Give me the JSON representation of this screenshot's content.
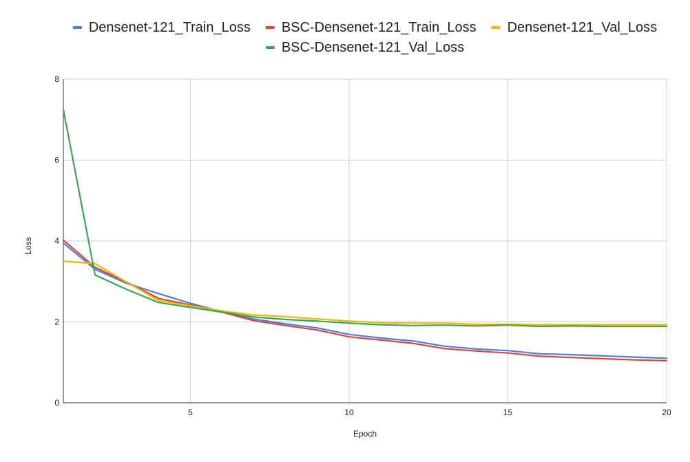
{
  "chart_data": {
    "type": "line",
    "title": "",
    "xlabel": "Epoch",
    "ylabel": "Loss",
    "xlim": [
      1,
      20
    ],
    "ylim": [
      0,
      8
    ],
    "x_ticks": [
      "5",
      "10",
      "15",
      "20"
    ],
    "y_ticks": [
      "0",
      "2",
      "4",
      "6",
      "8"
    ],
    "grid": true,
    "legend_position": "top",
    "x": [
      1,
      2,
      3,
      4,
      5,
      6,
      7,
      8,
      9,
      10,
      11,
      12,
      13,
      14,
      15,
      16,
      17,
      18,
      19,
      20
    ],
    "series": [
      {
        "name": "Densenet-121_Train_Loss",
        "color": "#4A7FE0",
        "values": [
          3.95,
          3.3,
          2.95,
          2.7,
          2.46,
          2.25,
          2.07,
          1.95,
          1.85,
          1.69,
          1.6,
          1.53,
          1.4,
          1.33,
          1.29,
          1.21,
          1.19,
          1.16,
          1.13,
          1.1
        ]
      },
      {
        "name": "BSC-Densenet-121_Train_Loss",
        "color": "#DB4437",
        "values": [
          4.02,
          3.35,
          2.98,
          2.58,
          2.42,
          2.24,
          2.03,
          1.91,
          1.8,
          1.63,
          1.55,
          1.47,
          1.34,
          1.28,
          1.23,
          1.15,
          1.12,
          1.09,
          1.06,
          1.04
        ]
      },
      {
        "name": "Densenet-121_Val_Loss",
        "color": "#F4B400",
        "values": [
          3.5,
          3.44,
          2.98,
          2.53,
          2.4,
          2.27,
          2.17,
          2.13,
          2.07,
          2.02,
          1.98,
          1.97,
          1.97,
          1.94,
          1.94,
          1.93,
          1.93,
          1.93,
          1.93,
          1.93
        ]
      },
      {
        "name": "BSC-Densenet-121_Val_Loss",
        "color": "#34A853",
        "values": [
          7.25,
          3.16,
          2.8,
          2.48,
          2.36,
          2.24,
          2.12,
          2.06,
          2.02,
          1.97,
          1.93,
          1.91,
          1.92,
          1.9,
          1.92,
          1.89,
          1.9,
          1.89,
          1.89,
          1.89
        ]
      }
    ]
  }
}
